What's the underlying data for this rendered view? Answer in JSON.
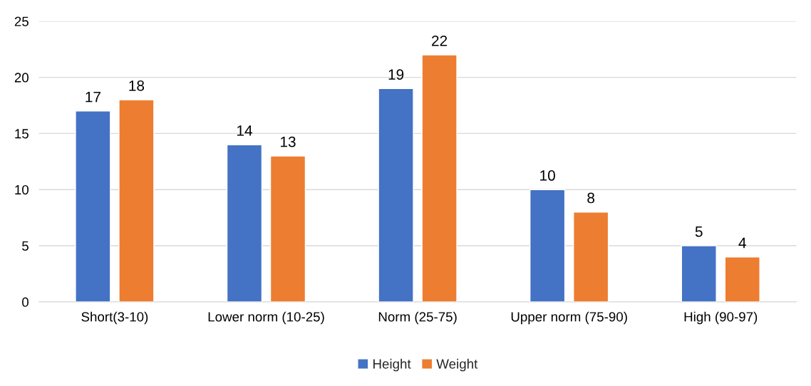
{
  "chart_data": {
    "type": "bar",
    "categories": [
      "Short(3-10)",
      "Lower norm (10-25)",
      "Norm (25-75)",
      "Upper norm (75-90)",
      "High (90-97)"
    ],
    "series": [
      {
        "name": "Height",
        "color": "#4472c4",
        "values": [
          17,
          14,
          19,
          10,
          5
        ]
      },
      {
        "name": "Weight",
        "color": "#ed7d31",
        "values": [
          18,
          13,
          22,
          8,
          4
        ]
      }
    ],
    "ylim": [
      0,
      25
    ],
    "yticks": [
      0,
      5,
      10,
      15,
      20,
      25
    ],
    "grid": "y",
    "legend": "bottom",
    "data_labels": true
  }
}
